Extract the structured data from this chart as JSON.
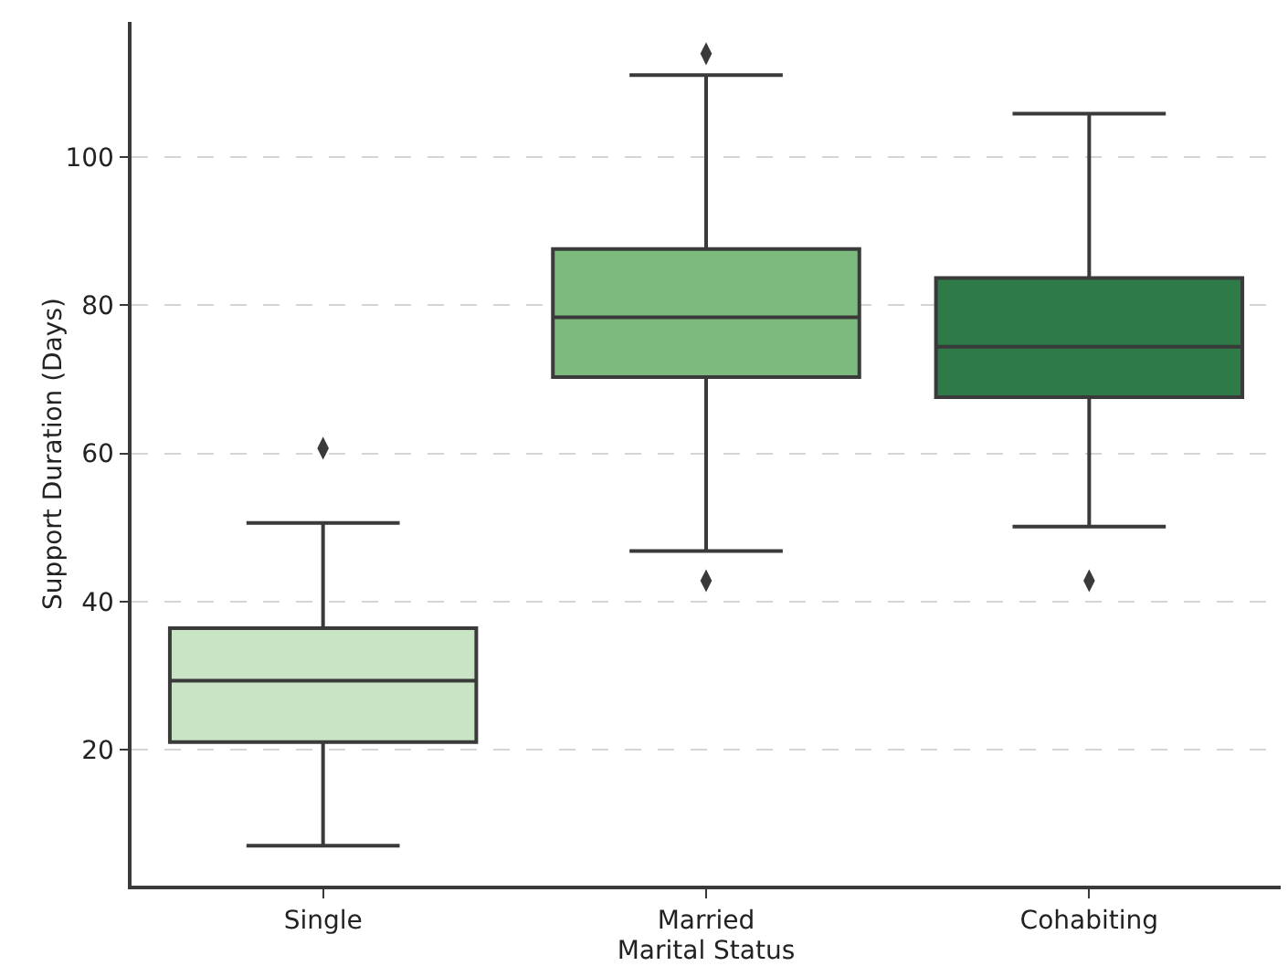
{
  "chart_data": {
    "type": "box",
    "xlabel": "Marital Status",
    "ylabel": "Support Duration (Days)",
    "categories": [
      "Single",
      "Married",
      "Cohabiting"
    ],
    "colors": [
      "#c9e4c5",
      "#7dba7e",
      "#2e7b47"
    ],
    "boxes": [
      {
        "low": 7.0,
        "q1": 21.0,
        "median": 29.3,
        "q3": 36.4,
        "high": 50.6,
        "outliers": [
          60.7
        ]
      },
      {
        "low": 46.8,
        "q1": 70.3,
        "median": 78.4,
        "q3": 87.6,
        "high": 111.1,
        "outliers": [
          114.0,
          42.8
        ]
      },
      {
        "low": 50.1,
        "q1": 67.6,
        "median": 74.4,
        "q3": 83.7,
        "high": 105.9,
        "outliers": [
          42.8
        ]
      }
    ],
    "ylim": [
      1.6,
      118.3
    ],
    "yticks": [
      20,
      40,
      60,
      80,
      100
    ],
    "grid": "y",
    "marker": "diamond"
  }
}
